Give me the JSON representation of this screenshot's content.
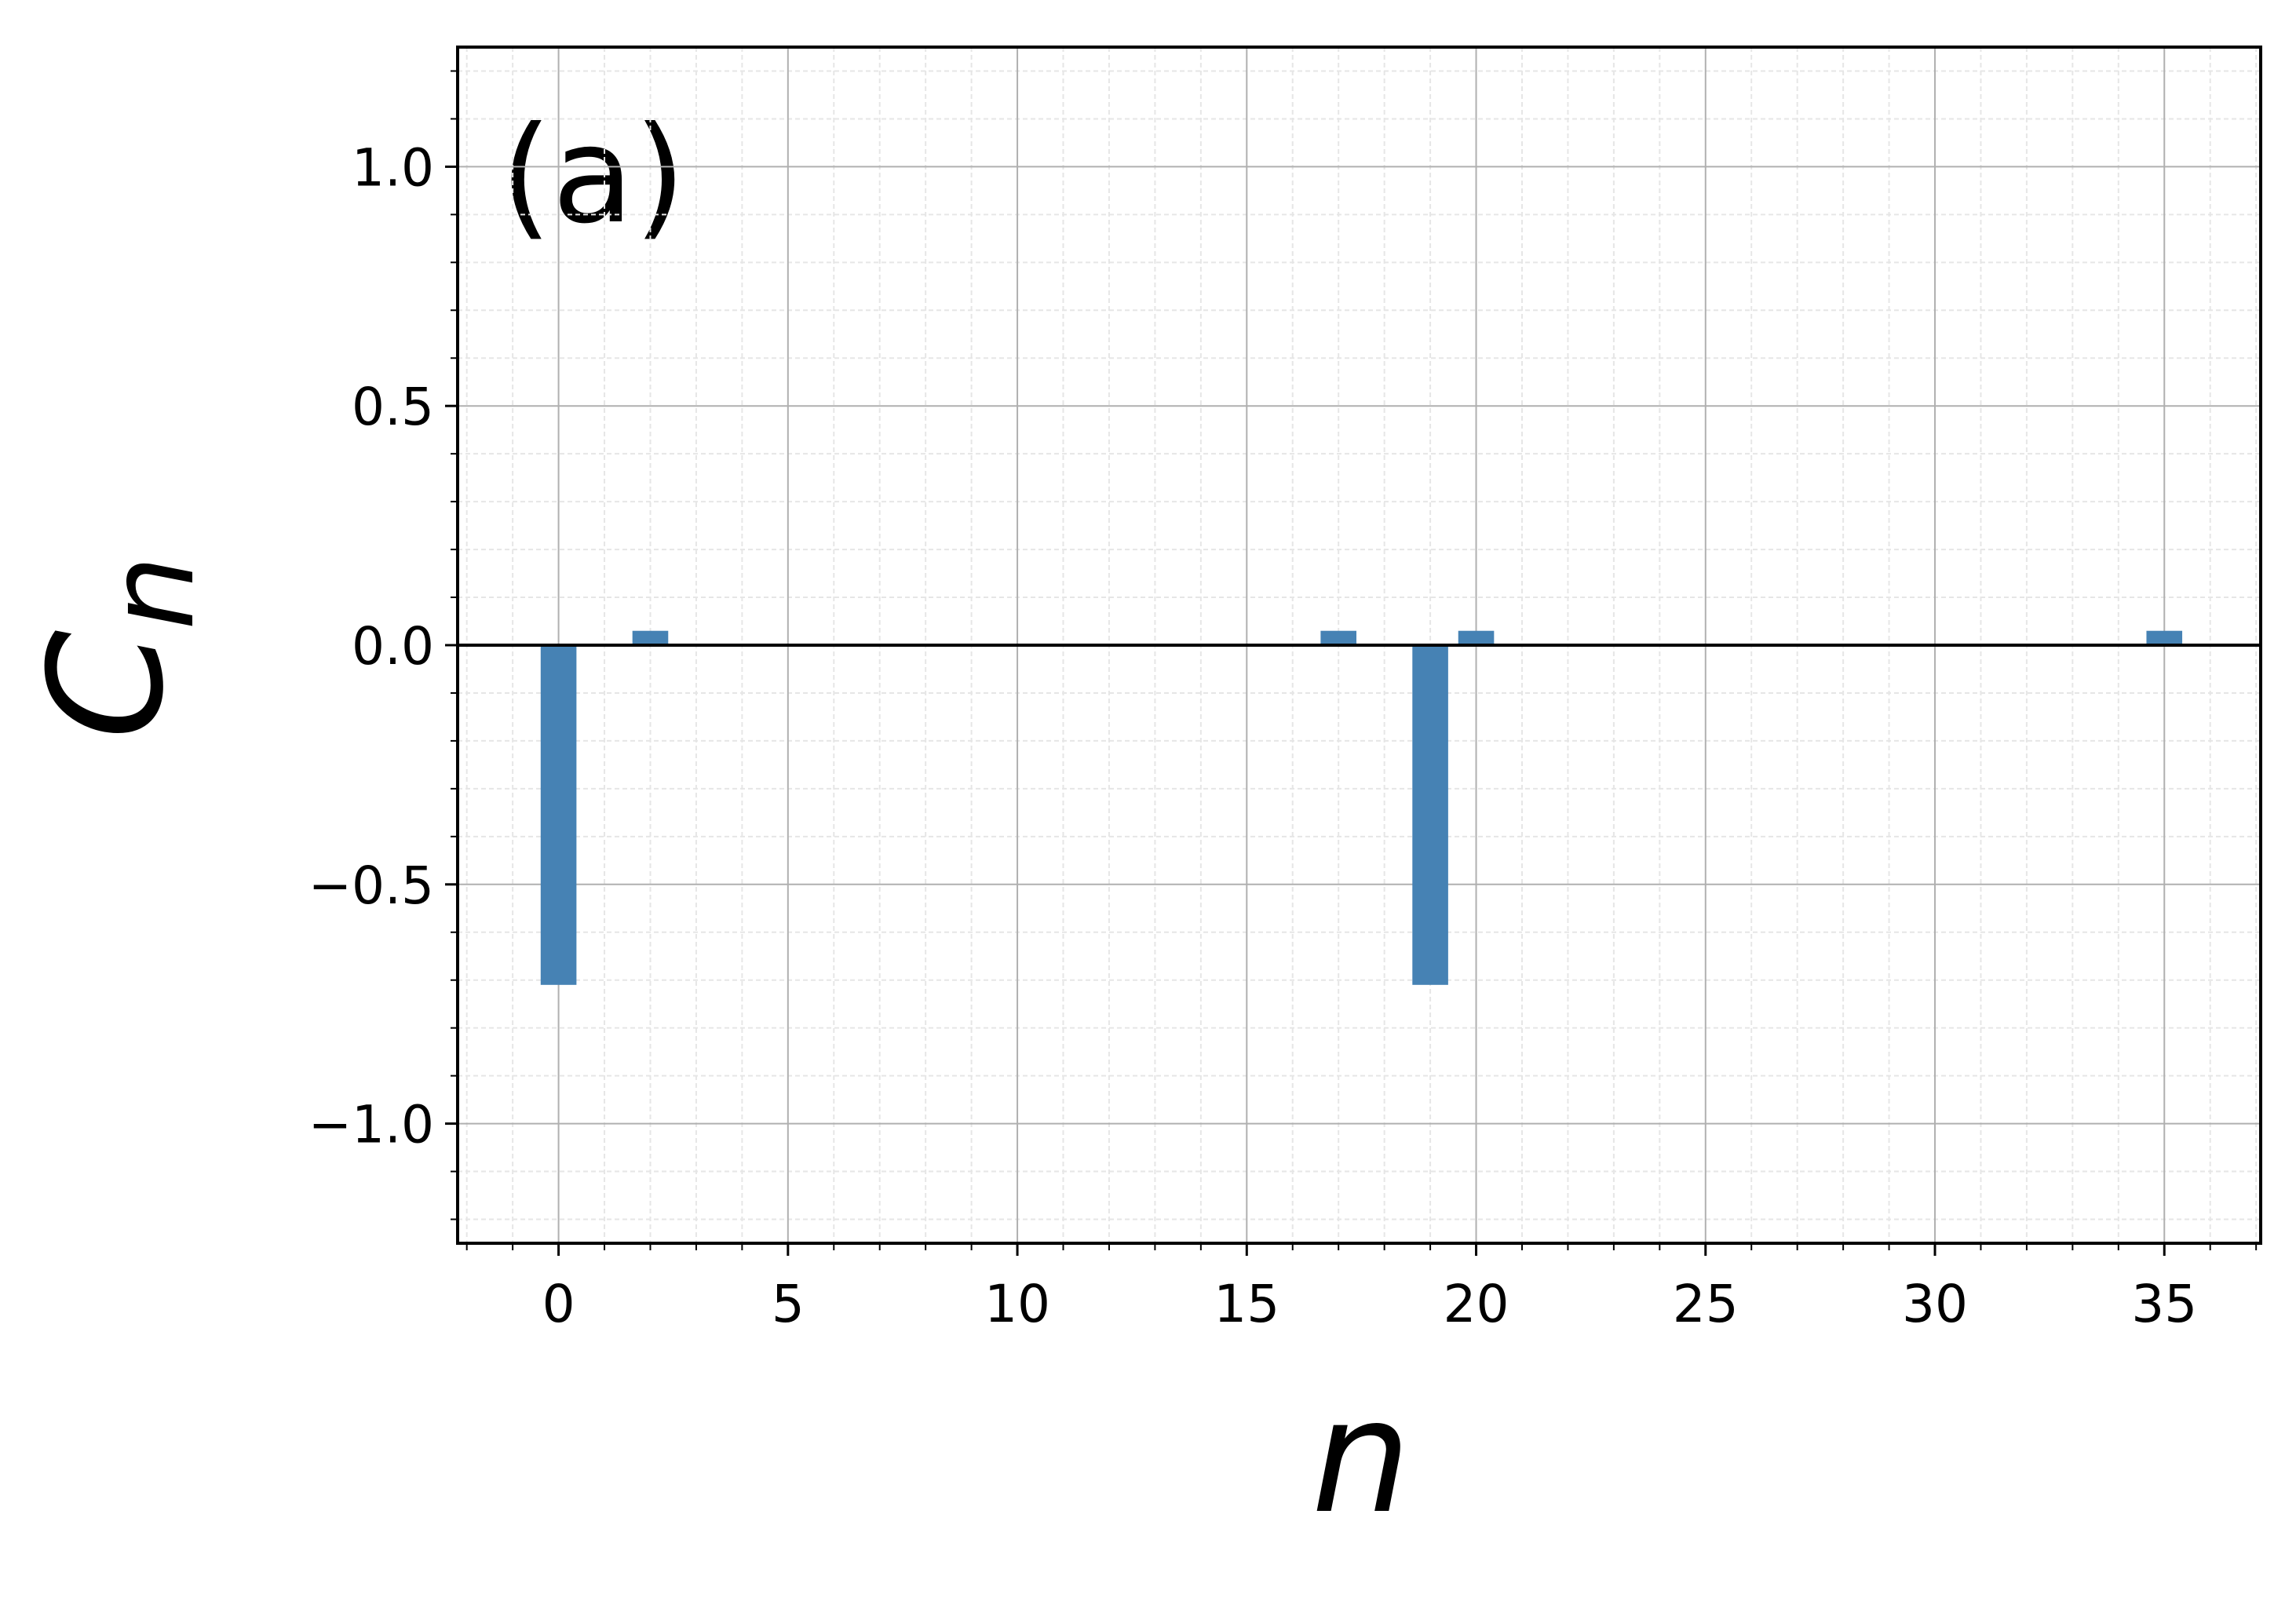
{
  "chart_data": {
    "type": "bar",
    "annotation": "(a)",
    "xlabel": "n",
    "ylabel": "C",
    "ylabel_subscript": "n",
    "x": [
      0,
      2,
      17,
      19,
      20,
      35
    ],
    "values": [
      -0.71,
      0.03,
      0.03,
      -0.71,
      0.03,
      0.03
    ],
    "color": "#4682b4",
    "xlim": [
      -2.2,
      37.1
    ],
    "ylim": [
      -1.25,
      1.25
    ],
    "xticks": [
      0,
      5,
      10,
      15,
      20,
      25,
      30,
      35
    ],
    "yticks": [
      {
        "value": -1,
        "label": "−1.0"
      },
      {
        "value": -0.5,
        "label": "−0.5"
      },
      {
        "value": 0,
        "label": "0.0"
      },
      {
        "value": 0.5,
        "label": "0.5"
      },
      {
        "value": 1,
        "label": "1.0"
      }
    ],
    "xminorticks": [
      -2,
      -1,
      1,
      2,
      3,
      4,
      6,
      7,
      8,
      9,
      11,
      12,
      13,
      14,
      16,
      17,
      18,
      19,
      21,
      22,
      23,
      24,
      26,
      27,
      28,
      29,
      31,
      32,
      33,
      34,
      36,
      37
    ],
    "yminorticks": [
      -1.2,
      -1.1,
      -0.9,
      -0.8,
      -0.7,
      -0.6,
      -0.4,
      -0.3,
      -0.2,
      -0.1,
      0.1,
      0.2,
      0.3,
      0.4,
      0.6,
      0.7,
      0.8,
      0.9,
      1.1,
      1.2
    ],
    "axhline": 0,
    "grid": true
  }
}
